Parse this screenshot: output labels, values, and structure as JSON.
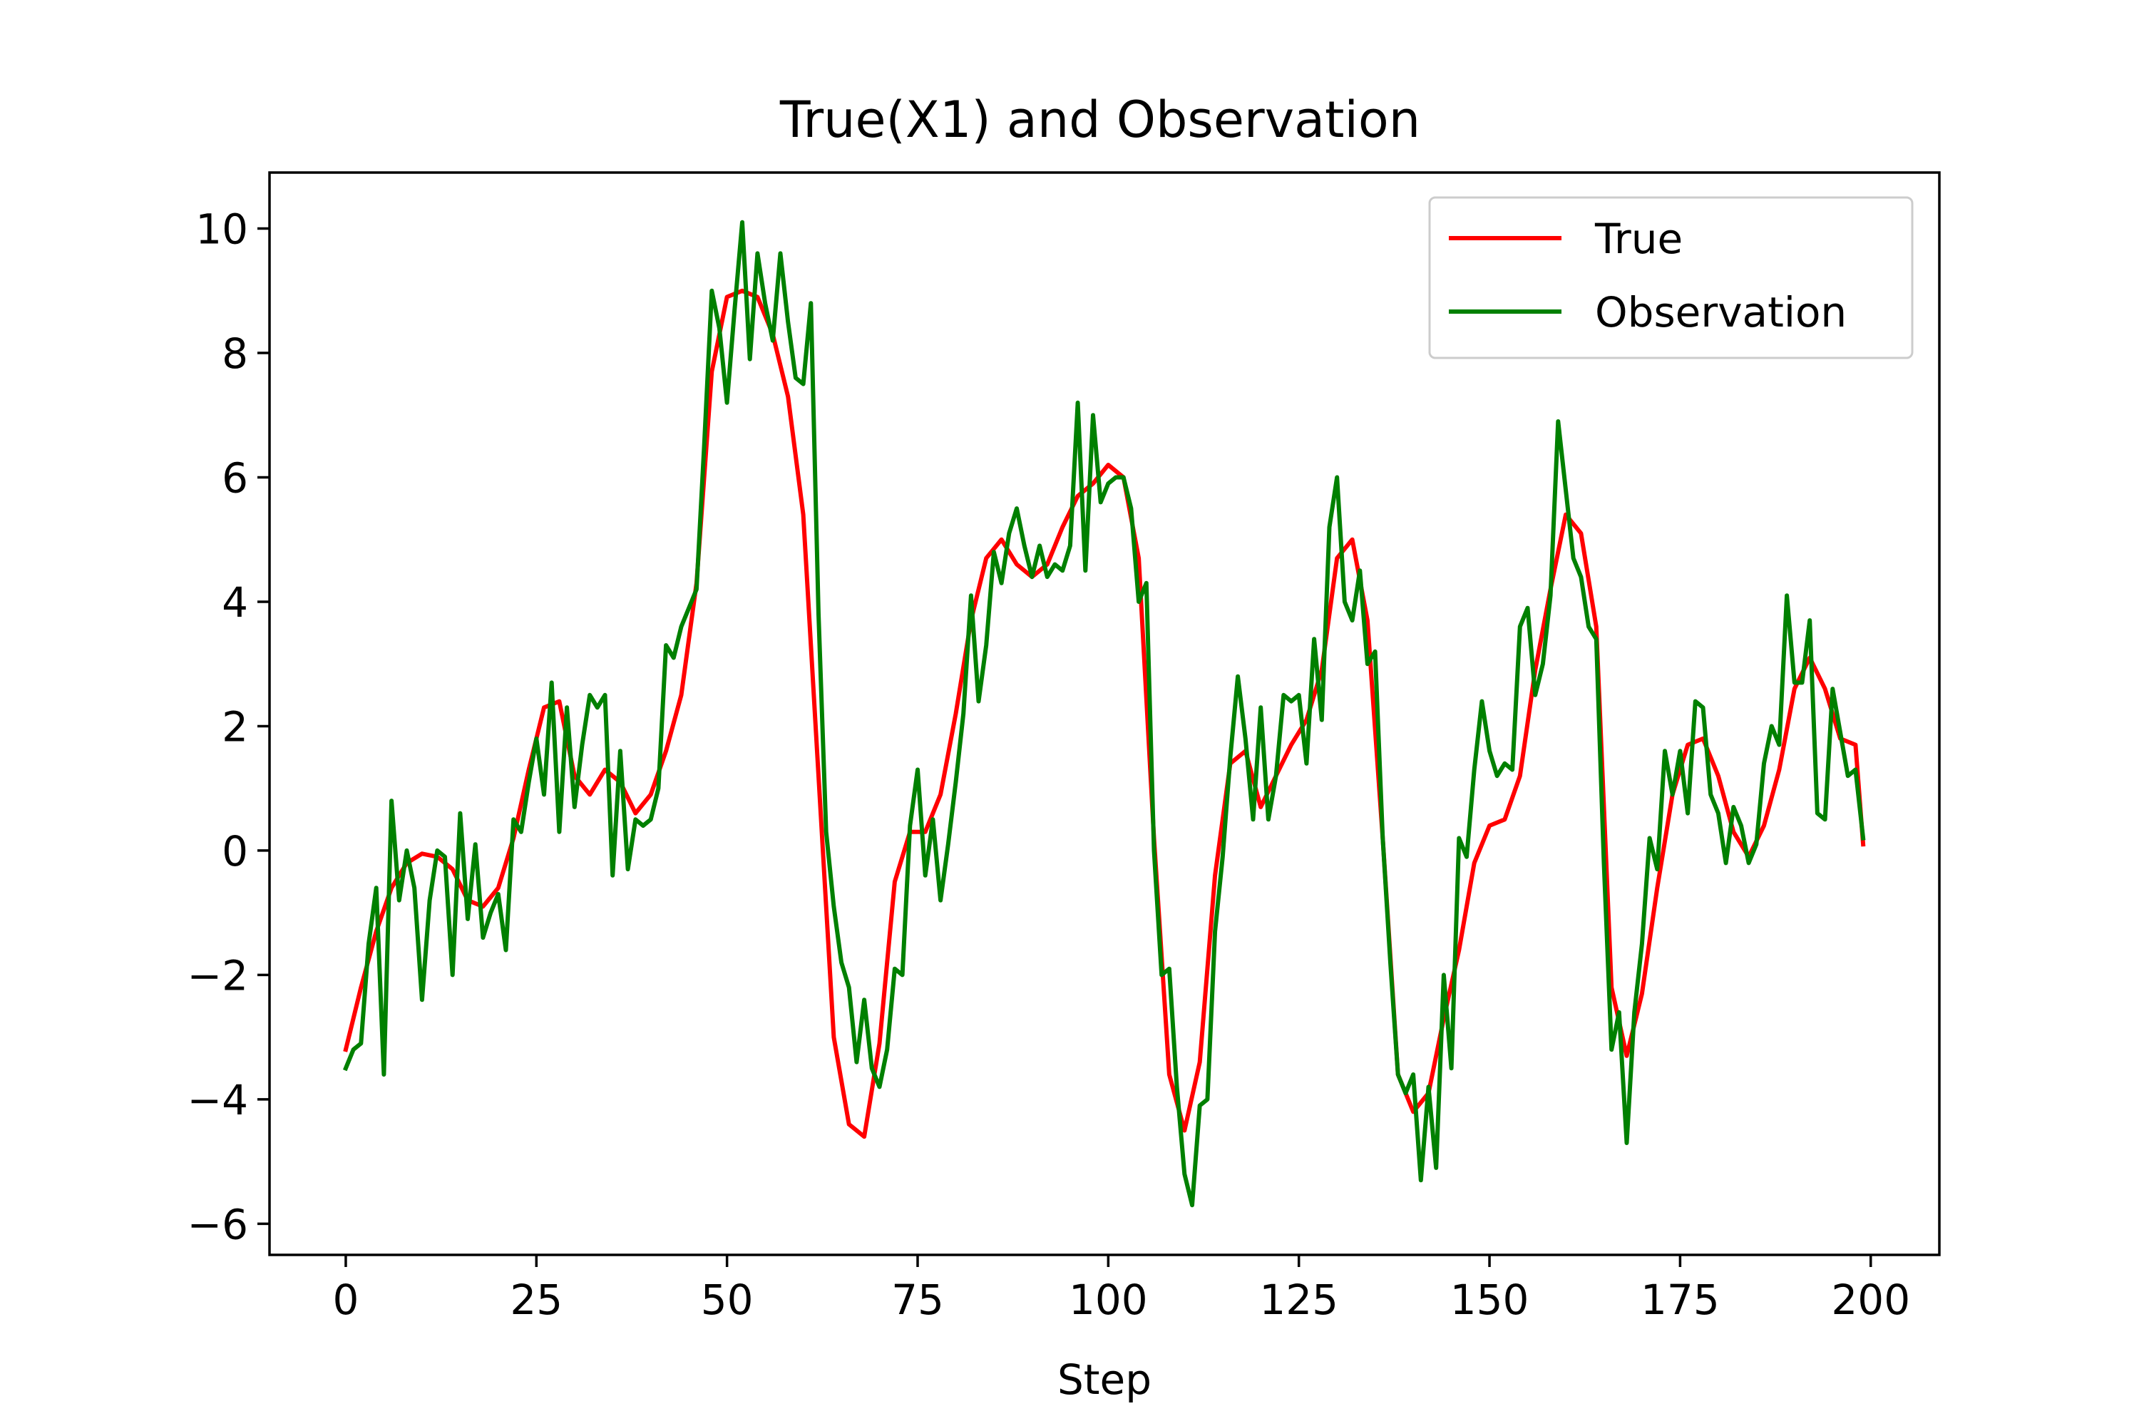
{
  "chart_data": {
    "type": "line",
    "title": "True(X1) and Observation",
    "xlabel": "Step",
    "ylabel": "",
    "xlim": [
      -10,
      209
    ],
    "ylim": [
      -6.5,
      10.9
    ],
    "xticks": [
      0,
      25,
      50,
      75,
      100,
      125,
      150,
      175,
      200
    ],
    "yticks": [
      -6,
      -4,
      -2,
      0,
      2,
      4,
      6,
      8,
      10
    ],
    "grid": false,
    "legend_position": "upper right",
    "series": [
      {
        "name": "True",
        "color": "#ff0000",
        "x": [
          0,
          2,
          4,
          6,
          8,
          10,
          12,
          14,
          16,
          18,
          20,
          22,
          24,
          26,
          28,
          30,
          32,
          34,
          36,
          38,
          40,
          42,
          44,
          46,
          48,
          50,
          52,
          54,
          56,
          58,
          60,
          62,
          64,
          66,
          68,
          70,
          72,
          74,
          76,
          78,
          80,
          82,
          84,
          86,
          88,
          90,
          92,
          94,
          96,
          98,
          100,
          102,
          104,
          106,
          108,
          110,
          112,
          114,
          116,
          118,
          120,
          122,
          124,
          126,
          128,
          130,
          132,
          134,
          136,
          138,
          140,
          142,
          144,
          146,
          148,
          150,
          152,
          154,
          156,
          158,
          160,
          162,
          164,
          166,
          168,
          170,
          172,
          174,
          176,
          178,
          180,
          182,
          184,
          186,
          188,
          190,
          192,
          194,
          196,
          198,
          199
        ],
        "y": [
          -3.2,
          -2.2,
          -1.3,
          -0.6,
          -0.2,
          -0.05,
          -0.1,
          -0.3,
          -0.8,
          -0.9,
          -0.6,
          0.2,
          1.3,
          2.3,
          2.4,
          1.2,
          0.9,
          1.3,
          1.1,
          0.6,
          0.9,
          1.6,
          2.5,
          4.3,
          7.7,
          8.9,
          9.0,
          8.9,
          8.3,
          7.3,
          5.4,
          1.2,
          -3.0,
          -4.4,
          -4.6,
          -3.1,
          -0.5,
          0.3,
          0.3,
          0.9,
          2.2,
          3.7,
          4.7,
          5.0,
          4.6,
          4.4,
          4.6,
          5.2,
          5.7,
          5.9,
          6.2,
          6.0,
          4.7,
          0.2,
          -3.6,
          -4.5,
          -3.4,
          -0.4,
          1.4,
          1.6,
          0.7,
          1.2,
          1.7,
          2.1,
          2.9,
          4.7,
          5.0,
          3.7,
          0.2,
          -3.6,
          -4.2,
          -3.9,
          -2.7,
          -1.6,
          -0.2,
          0.4,
          0.5,
          1.2,
          2.9,
          4.2,
          5.4,
          5.1,
          3.6,
          -2.2,
          -3.3,
          -2.3,
          -0.6,
          0.9,
          1.7,
          1.8,
          1.2,
          0.3,
          -0.1,
          0.4,
          1.3,
          2.6,
          3.1,
          2.6,
          1.8,
          1.7,
          0.1
        ]
      },
      {
        "name": "Observation",
        "color": "#008000",
        "x": [
          0,
          1,
          2,
          3,
          4,
          5,
          6,
          7,
          8,
          9,
          10,
          11,
          12,
          13,
          14,
          15,
          16,
          17,
          18,
          19,
          20,
          21,
          22,
          23,
          24,
          25,
          26,
          27,
          28,
          29,
          30,
          31,
          32,
          33,
          34,
          35,
          36,
          37,
          38,
          39,
          40,
          41,
          42,
          43,
          44,
          45,
          46,
          47,
          48,
          49,
          50,
          51,
          52,
          53,
          54,
          55,
          56,
          57,
          58,
          59,
          60,
          61,
          62,
          63,
          64,
          65,
          66,
          67,
          68,
          69,
          70,
          71,
          72,
          73,
          74,
          75,
          76,
          77,
          78,
          79,
          80,
          81,
          82,
          83,
          84,
          85,
          86,
          87,
          88,
          89,
          90,
          91,
          92,
          93,
          94,
          95,
          96,
          97,
          98,
          99,
          100,
          101,
          102,
          103,
          104,
          105,
          106,
          107,
          108,
          109,
          110,
          111,
          112,
          113,
          114,
          115,
          116,
          117,
          118,
          119,
          120,
          121,
          122,
          123,
          124,
          125,
          126,
          127,
          128,
          129,
          130,
          131,
          132,
          133,
          134,
          135,
          136,
          137,
          138,
          139,
          140,
          141,
          142,
          143,
          144,
          145,
          146,
          147,
          148,
          149,
          150,
          151,
          152,
          153,
          154,
          155,
          156,
          157,
          158,
          159,
          160,
          161,
          162,
          163,
          164,
          165,
          166,
          167,
          168,
          169,
          170,
          171,
          172,
          173,
          174,
          175,
          176,
          177,
          178,
          179,
          180,
          181,
          182,
          183,
          184,
          185,
          186,
          187,
          188,
          189,
          190,
          191,
          192,
          193,
          194,
          195,
          196,
          197,
          198,
          199
        ],
        "y": [
          -3.5,
          -3.2,
          -3.1,
          -1.5,
          -0.6,
          -3.6,
          0.8,
          -0.8,
          0.0,
          -0.6,
          -2.4,
          -0.8,
          0.0,
          -0.1,
          -2.0,
          0.6,
          -1.1,
          0.1,
          -1.4,
          -1.0,
          -0.7,
          -1.6,
          0.5,
          0.3,
          1.1,
          1.8,
          0.9,
          2.7,
          0.3,
          2.3,
          0.7,
          1.7,
          2.5,
          2.3,
          2.5,
          -0.4,
          1.6,
          -0.3,
          0.5,
          0.4,
          0.5,
          1.0,
          3.3,
          3.1,
          3.6,
          3.9,
          4.2,
          6.5,
          9.0,
          8.4,
          7.2,
          8.7,
          10.1,
          7.9,
          9.6,
          8.8,
          8.2,
          9.6,
          8.5,
          7.6,
          7.5,
          8.8,
          3.8,
          0.3,
          -0.9,
          -1.8,
          -2.2,
          -3.4,
          -2.4,
          -3.5,
          -3.8,
          -3.2,
          -1.9,
          -2.0,
          0.4,
          1.3,
          -0.4,
          0.5,
          -0.8,
          0.1,
          1.1,
          2.2,
          4.1,
          2.4,
          3.3,
          4.8,
          4.3,
          5.1,
          5.5,
          4.9,
          4.4,
          4.9,
          4.4,
          4.6,
          4.5,
          4.9,
          7.2,
          4.5,
          7.0,
          5.6,
          5.9,
          6.0,
          6.0,
          5.5,
          4.0,
          4.3,
          0.0,
          -2.0,
          -1.9,
          -3.8,
          -5.2,
          -5.7,
          -4.1,
          -4.0,
          -1.3,
          -0.1,
          1.5,
          2.8,
          1.8,
          0.5,
          2.3,
          0.5,
          1.2,
          2.5,
          2.4,
          2.5,
          1.4,
          3.4,
          2.1,
          5.2,
          6.0,
          4.0,
          3.7,
          4.5,
          3.0,
          3.2,
          0.2,
          -1.8,
          -3.6,
          -3.9,
          -3.6,
          -5.3,
          -3.8,
          -5.1,
          -2.0,
          -3.5,
          0.2,
          -0.1,
          1.3,
          2.4,
          1.6,
          1.2,
          1.4,
          1.3,
          3.6,
          3.9,
          2.5,
          3.0,
          4.1,
          6.9,
          5.8,
          4.7,
          4.4,
          3.6,
          3.4,
          -0.2,
          -3.2,
          -2.6,
          -4.7,
          -2.6,
          -1.5,
          0.2,
          -0.3,
          1.6,
          0.9,
          1.6,
          0.6,
          2.4,
          2.3,
          0.9,
          0.6,
          -0.2,
          0.7,
          0.4,
          -0.2,
          0.1,
          1.4,
          2.0,
          1.7,
          4.1,
          2.7,
          2.7,
          3.7,
          0.6,
          0.5,
          2.6,
          1.9,
          1.2,
          1.3,
          0.2
        ]
      }
    ]
  }
}
